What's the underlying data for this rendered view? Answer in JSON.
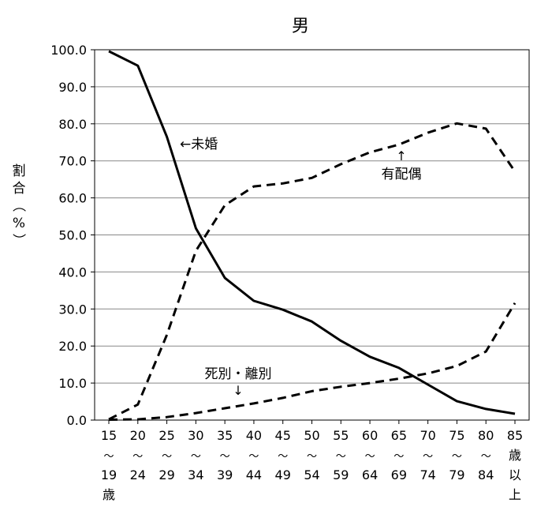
{
  "chart_data": {
    "type": "line",
    "title": "男",
    "ylabel": "割合（%）",
    "ylim": [
      0,
      100
    ],
    "yticks": [
      "0.0",
      "10.0",
      "20.0",
      "30.0",
      "40.0",
      "50.0",
      "60.0",
      "70.0",
      "80.0",
      "90.0",
      "100.0"
    ],
    "grid": true,
    "categories": [
      {
        "top": "15",
        "sep": "～",
        "bottom": "19",
        "suffix": "歳"
      },
      {
        "top": "20",
        "sep": "～",
        "bottom": "24",
        "suffix": ""
      },
      {
        "top": "25",
        "sep": "～",
        "bottom": "29",
        "suffix": ""
      },
      {
        "top": "30",
        "sep": "～",
        "bottom": "34",
        "suffix": ""
      },
      {
        "top": "35",
        "sep": "～",
        "bottom": "39",
        "suffix": ""
      },
      {
        "top": "40",
        "sep": "～",
        "bottom": "44",
        "suffix": ""
      },
      {
        "top": "45",
        "sep": "～",
        "bottom": "49",
        "suffix": ""
      },
      {
        "top": "50",
        "sep": "～",
        "bottom": "54",
        "suffix": ""
      },
      {
        "top": "55",
        "sep": "～",
        "bottom": "59",
        "suffix": ""
      },
      {
        "top": "60",
        "sep": "～",
        "bottom": "64",
        "suffix": ""
      },
      {
        "top": "65",
        "sep": "～",
        "bottom": "69",
        "suffix": ""
      },
      {
        "top": "70",
        "sep": "～",
        "bottom": "74",
        "suffix": ""
      },
      {
        "top": "75",
        "sep": "～",
        "bottom": "79",
        "suffix": ""
      },
      {
        "top": "80",
        "sep": "～",
        "bottom": "84",
        "suffix": ""
      },
      {
        "top": "85",
        "sep": "",
        "bottom": "",
        "suffix": "歳以上"
      }
    ],
    "series": [
      {
        "name": "未婚",
        "style": "solid",
        "values": [
          99.6,
          95.7,
          76.5,
          51.8,
          38.4,
          32.2,
          29.8,
          26.6,
          21.4,
          17.1,
          14.1,
          9.6,
          5.1,
          3.0,
          1.7
        ]
      },
      {
        "name": "有配偶",
        "style": "dashed",
        "values": [
          0.2,
          4.2,
          23.0,
          45.7,
          58.0,
          63.1,
          63.9,
          65.4,
          69.1,
          72.3,
          74.4,
          77.6,
          80.1,
          78.7,
          67.1
        ]
      },
      {
        "name": "死別・離別",
        "style": "dashed",
        "values": [
          0.1,
          0.2,
          0.8,
          1.9,
          3.2,
          4.5,
          6.0,
          7.8,
          9.0,
          10.0,
          11.2,
          12.6,
          14.6,
          18.5,
          31.6
        ]
      }
    ],
    "annotations": [
      {
        "text": "←未婚",
        "series": "未婚"
      },
      {
        "text": "有配偶",
        "arrow": "↑",
        "series": "有配偶"
      },
      {
        "text": "死別・離別",
        "arrow": "↓",
        "series": "死別・離別"
      }
    ]
  }
}
